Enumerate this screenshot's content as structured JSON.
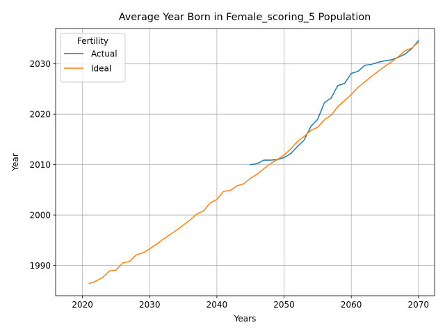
{
  "chart_data": {
    "type": "line",
    "title": "Average Year Born in Female_scoring_5 Population",
    "xlabel": "Years",
    "ylabel": "Year",
    "xlim": [
      2016,
      2072.4
    ],
    "ylim": [
      1984,
      2037
    ],
    "xticks": [
      2020,
      2030,
      2040,
      2050,
      2060,
      2070
    ],
    "yticks": [
      1990,
      2000,
      2010,
      2020,
      2030
    ],
    "grid": true,
    "legend": {
      "title": "Fertility",
      "placement": "top-left"
    },
    "series": [
      {
        "name": "Actual",
        "color": "#1f77b4",
        "x": [
          2045,
          2046,
          2047,
          2048,
          2049,
          2050,
          2051,
          2052,
          2053,
          2054,
          2055,
          2056,
          2057,
          2058,
          2059,
          2060,
          2061,
          2062,
          2063,
          2064,
          2065,
          2066,
          2067,
          2068,
          2069,
          2070
        ],
        "y": [
          2010.0,
          2010.2,
          2010.9,
          2010.9,
          2011.0,
          2011.4,
          2012.2,
          2013.6,
          2014.9,
          2017.6,
          2019.0,
          2022.3,
          2023.2,
          2025.7,
          2026.1,
          2028.1,
          2028.5,
          2029.7,
          2029.9,
          2030.3,
          2030.6,
          2030.8,
          2031.3,
          2031.9,
          2033.0,
          2034.6
        ]
      },
      {
        "name": "Ideal",
        "color": "#ff7f0e",
        "x": [
          2021,
          2022,
          2023,
          2024,
          2025,
          2026,
          2027,
          2028,
          2029,
          2030,
          2031,
          2032,
          2033,
          2034,
          2035,
          2036,
          2037,
          2038,
          2039,
          2040,
          2041,
          2042,
          2043,
          2044,
          2045,
          2046,
          2047,
          2048,
          2049,
          2050,
          2051,
          2052,
          2053,
          2054,
          2055,
          2056,
          2057,
          2058,
          2059,
          2060,
          2061,
          2062,
          2063,
          2064,
          2065,
          2066,
          2067,
          2068,
          2069,
          2070
        ],
        "y": [
          1986.4,
          1986.9,
          1987.6,
          1988.9,
          1989.1,
          1990.5,
          1990.8,
          1992.1,
          1992.5,
          1993.3,
          1994.2,
          1995.2,
          1996.1,
          1997.0,
          1998.0,
          1999.0,
          2000.2,
          2000.8,
          2002.4,
          2003.1,
          2004.7,
          2004.9,
          2005.8,
          2006.2,
          2007.3,
          2008.1,
          2009.2,
          2010.2,
          2011.0,
          2011.9,
          2013.1,
          2014.6,
          2015.6,
          2016.8,
          2017.4,
          2018.9,
          2019.8,
          2021.5,
          2022.7,
          2023.9,
          2025.3,
          2026.4,
          2027.5,
          2028.5,
          2029.5,
          2030.4,
          2031.4,
          2032.6,
          2033.1,
          2034.3
        ]
      }
    ]
  }
}
